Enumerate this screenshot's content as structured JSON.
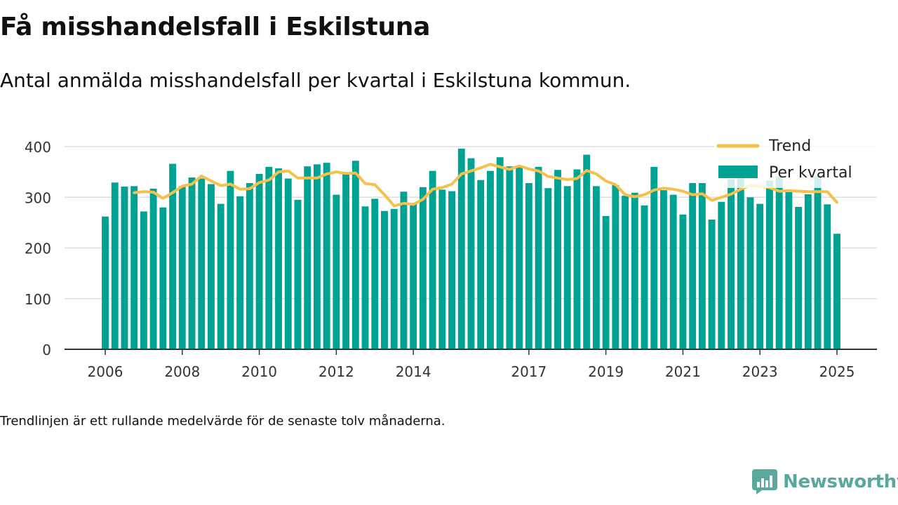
{
  "header": {
    "title": "Få misshandelsfall i Eskilstuna",
    "subtitle": "Antal anmälda misshandelsfall per kvartal i Eskilstuna kommun."
  },
  "footer": {
    "note": "Trendlinjen är ett rullande medelvärde för de senaste tolv månaderna.",
    "brand": "Newsworthy",
    "brand_icon": "newsworthy-logo-icon"
  },
  "colors": {
    "bar": "#00a294",
    "trend": "#f7c04b",
    "grid": "#dddddd",
    "axis": "#333333",
    "brand": "#5aa89c"
  },
  "chart_data": {
    "type": "bar",
    "title": "",
    "xlabel": "",
    "ylabel": "",
    "ylim": [
      0,
      400
    ],
    "yticks": [
      "0",
      "100",
      "200",
      "300",
      "400"
    ],
    "xticks": [
      "2006",
      "2008",
      "2010",
      "2012",
      "2014",
      "2017",
      "2019",
      "2021",
      "2023",
      "2025"
    ],
    "grid": true,
    "legend_position": "top-right",
    "categories": [
      "2006 Q1",
      "2006 Q2",
      "2006 Q3",
      "2006 Q4",
      "2007 Q1",
      "2007 Q2",
      "2007 Q3",
      "2007 Q4",
      "2008 Q1",
      "2008 Q2",
      "2008 Q3",
      "2008 Q4",
      "2009 Q1",
      "2009 Q2",
      "2009 Q3",
      "2009 Q4",
      "2010 Q1",
      "2010 Q2",
      "2010 Q3",
      "2010 Q4",
      "2011 Q1",
      "2011 Q2",
      "2011 Q3",
      "2011 Q4",
      "2012 Q1",
      "2012 Q2",
      "2012 Q3",
      "2012 Q4",
      "2013 Q1",
      "2013 Q2",
      "2013 Q3",
      "2013 Q4",
      "2014 Q1",
      "2014 Q2",
      "2014 Q3",
      "2014 Q4",
      "2015 Q1",
      "2015 Q2",
      "2015 Q3",
      "2015 Q4",
      "2016 Q1",
      "2016 Q2",
      "2016 Q3",
      "2016 Q4",
      "2017 Q1",
      "2017 Q2",
      "2017 Q3",
      "2017 Q4",
      "2018 Q1",
      "2018 Q2",
      "2018 Q3",
      "2018 Q4",
      "2019 Q1",
      "2019 Q2",
      "2019 Q3",
      "2019 Q4",
      "2020 Q1",
      "2020 Q2",
      "2020 Q3",
      "2020 Q4",
      "2021 Q1",
      "2021 Q2",
      "2021 Q3",
      "2021 Q4",
      "2022 Q1",
      "2022 Q2",
      "2022 Q3",
      "2022 Q4",
      "2023 Q1",
      "2023 Q2",
      "2023 Q3",
      "2023 Q4",
      "2024 Q1",
      "2024 Q2",
      "2024 Q3",
      "2024 Q4",
      "2025 Q1"
    ],
    "series": [
      {
        "name": "Per kvartal",
        "type": "bar",
        "values": [
          262,
          329,
          321,
          322,
          272,
          317,
          280,
          366,
          322,
          339,
          337,
          326,
          287,
          352,
          302,
          328,
          346,
          360,
          357,
          337,
          295,
          361,
          365,
          368,
          305,
          347,
          372,
          282,
          297,
          273,
          277,
          311,
          287,
          320,
          352,
          315,
          312,
          396,
          377,
          334,
          352,
          379,
          361,
          361,
          328,
          360,
          318,
          354,
          322,
          355,
          384,
          322,
          263,
          324,
          303,
          309,
          284,
          360,
          314,
          305,
          266,
          328,
          328,
          256,
          291,
          336,
          340,
          300,
          287,
          333,
          341,
          310,
          281,
          306,
          342,
          286,
          228
        ]
      },
      {
        "name": "Trend",
        "type": "line",
        "values": [
          null,
          null,
          null,
          309,
          311,
          310,
          298,
          309,
          322,
          326,
          342,
          332,
          323,
          326,
          316,
          317,
          329,
          334,
          350,
          352,
          338,
          338,
          338,
          346,
          350,
          347,
          348,
          327,
          325,
          305,
          283,
          288,
          286,
          296,
          316,
          319,
          326,
          346,
          352,
          358,
          365,
          360,
          355,
          362,
          356,
          352,
          341,
          338,
          335,
          337,
          353,
          346,
          332,
          325,
          305,
          301,
          305,
          314,
          318,
          316,
          312,
          305,
          307,
          294,
          300,
          306,
          316,
          323,
          322,
          319,
          312,
          313,
          312,
          311,
          311,
          311,
          290
        ]
      }
    ]
  }
}
